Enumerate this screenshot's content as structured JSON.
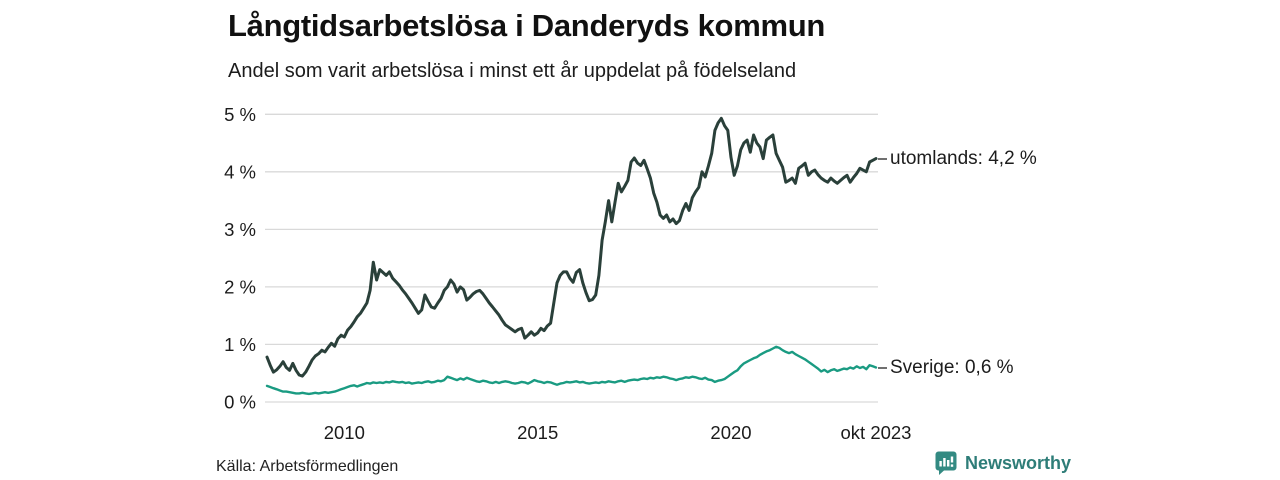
{
  "title": "Långtidsarbetslösa i Danderyds kommun",
  "subtitle": "Andel som varit arbetslösa i minst ett år uppdelat på födelseland",
  "source": "Källa: Arbetsförmedlingen",
  "branding": {
    "name": "Newsworthy",
    "icon": "bar-chart-speech-bubble-icon",
    "wordmark_color": "#2e7d78",
    "icon_color": "#338a82"
  },
  "chart_data": {
    "type": "line",
    "title": "Långtidsarbetslösa i Danderyds kommun",
    "subtitle": "Andel som varit arbetslösa i minst ett år uppdelat på födelseland",
    "x_start": "2008-01",
    "x_end": "2023-10",
    "x_unit": "month",
    "ylim": [
      0,
      5
    ],
    "grid": true,
    "gridline_color": "#d9d9d9",
    "y_ticks": [
      {
        "label": "0 %",
        "value": 0
      },
      {
        "label": "1 %",
        "value": 1
      },
      {
        "label": "2 %",
        "value": 2
      },
      {
        "label": "3 %",
        "value": 3
      },
      {
        "label": "4 %",
        "value": 4
      },
      {
        "label": "5 %",
        "value": 5
      }
    ],
    "x_ticks": [
      {
        "label": "2010",
        "month": 24
      },
      {
        "label": "2015",
        "month": 84
      },
      {
        "label": "2020",
        "month": 144
      },
      {
        "label": "okt 2023",
        "month": 189
      }
    ],
    "legend_position": "right-of-line-end",
    "series": [
      {
        "name": "utomlands",
        "label": "utomlands: 4,2 %",
        "last_value": "4,2 %",
        "color": "#2a403a",
        "values": [
          0.78,
          0.64,
          0.52,
          0.56,
          0.62,
          0.7,
          0.6,
          0.55,
          0.67,
          0.55,
          0.47,
          0.45,
          0.52,
          0.62,
          0.73,
          0.8,
          0.84,
          0.9,
          0.87,
          0.95,
          1.02,
          0.97,
          1.1,
          1.16,
          1.13,
          1.25,
          1.31,
          1.39,
          1.48,
          1.54,
          1.63,
          1.72,
          1.94,
          2.43,
          2.12,
          2.3,
          2.25,
          2.2,
          2.26,
          2.15,
          2.09,
          2.03,
          1.95,
          1.88,
          1.8,
          1.72,
          1.63,
          1.54,
          1.6,
          1.86,
          1.75,
          1.65,
          1.63,
          1.72,
          1.8,
          1.94,
          2.0,
          2.12,
          2.05,
          1.91,
          2.0,
          1.95,
          1.77,
          1.82,
          1.88,
          1.92,
          1.94,
          1.88,
          1.8,
          1.72,
          1.65,
          1.58,
          1.51,
          1.42,
          1.34,
          1.3,
          1.26,
          1.22,
          1.26,
          1.28,
          1.11,
          1.16,
          1.22,
          1.16,
          1.2,
          1.28,
          1.24,
          1.32,
          1.37,
          1.72,
          2.07,
          2.2,
          2.26,
          2.26,
          2.15,
          2.08,
          2.25,
          2.3,
          2.07,
          1.9,
          1.76,
          1.78,
          1.86,
          2.2,
          2.81,
          3.13,
          3.5,
          3.13,
          3.47,
          3.8,
          3.65,
          3.75,
          3.85,
          4.17,
          4.24,
          4.15,
          4.11,
          4.2,
          4.05,
          3.89,
          3.63,
          3.47,
          3.25,
          3.19,
          3.25,
          3.13,
          3.18,
          3.1,
          3.15,
          3.33,
          3.45,
          3.33,
          3.55,
          3.65,
          3.73,
          4.0,
          3.91,
          4.1,
          4.32,
          4.72,
          4.85,
          4.93,
          4.8,
          4.72,
          4.25,
          3.94,
          4.1,
          4.38,
          4.5,
          4.55,
          4.34,
          4.64,
          4.5,
          4.43,
          4.23,
          4.55,
          4.6,
          4.64,
          4.32,
          4.2,
          4.08,
          3.82,
          3.85,
          3.89,
          3.8,
          4.06,
          4.1,
          4.15,
          3.94,
          4.0,
          4.03,
          3.95,
          3.89,
          3.85,
          3.82,
          3.89,
          3.84,
          3.8,
          3.85,
          3.9,
          3.94,
          3.82,
          3.9,
          3.97,
          4.06,
          4.03,
          4.0,
          4.17,
          4.2,
          4.23
        ]
      },
      {
        "name": "Sverige",
        "label": "Sverige: 0,6 %",
        "last_value": "0,6 %",
        "color": "#1a9b82",
        "values": [
          0.28,
          0.26,
          0.24,
          0.22,
          0.2,
          0.18,
          0.18,
          0.17,
          0.16,
          0.15,
          0.15,
          0.16,
          0.15,
          0.14,
          0.15,
          0.16,
          0.15,
          0.16,
          0.17,
          0.16,
          0.17,
          0.18,
          0.2,
          0.22,
          0.24,
          0.26,
          0.28,
          0.29,
          0.27,
          0.29,
          0.31,
          0.33,
          0.32,
          0.34,
          0.33,
          0.34,
          0.33,
          0.35,
          0.34,
          0.36,
          0.35,
          0.34,
          0.35,
          0.33,
          0.34,
          0.32,
          0.33,
          0.34,
          0.33,
          0.35,
          0.36,
          0.34,
          0.35,
          0.37,
          0.36,
          0.38,
          0.44,
          0.42,
          0.4,
          0.38,
          0.41,
          0.39,
          0.42,
          0.4,
          0.38,
          0.36,
          0.35,
          0.37,
          0.36,
          0.34,
          0.33,
          0.35,
          0.33,
          0.35,
          0.36,
          0.35,
          0.33,
          0.32,
          0.33,
          0.35,
          0.34,
          0.32,
          0.35,
          0.38,
          0.36,
          0.35,
          0.33,
          0.35,
          0.34,
          0.32,
          0.3,
          0.32,
          0.33,
          0.35,
          0.34,
          0.35,
          0.36,
          0.34,
          0.35,
          0.33,
          0.32,
          0.33,
          0.34,
          0.33,
          0.35,
          0.34,
          0.36,
          0.35,
          0.34,
          0.36,
          0.37,
          0.35,
          0.37,
          0.38,
          0.39,
          0.38,
          0.4,
          0.41,
          0.4,
          0.42,
          0.41,
          0.43,
          0.42,
          0.44,
          0.43,
          0.41,
          0.4,
          0.38,
          0.4,
          0.41,
          0.43,
          0.42,
          0.44,
          0.43,
          0.41,
          0.4,
          0.42,
          0.39,
          0.38,
          0.35,
          0.37,
          0.38,
          0.4,
          0.44,
          0.48,
          0.52,
          0.55,
          0.62,
          0.67,
          0.7,
          0.73,
          0.76,
          0.78,
          0.82,
          0.85,
          0.88,
          0.9,
          0.93,
          0.96,
          0.94,
          0.9,
          0.87,
          0.85,
          0.87,
          0.83,
          0.8,
          0.77,
          0.74,
          0.7,
          0.66,
          0.62,
          0.58,
          0.53,
          0.56,
          0.52,
          0.55,
          0.57,
          0.54,
          0.56,
          0.58,
          0.57,
          0.6,
          0.58,
          0.62,
          0.59,
          0.61,
          0.57,
          0.64,
          0.62,
          0.6
        ]
      }
    ]
  }
}
